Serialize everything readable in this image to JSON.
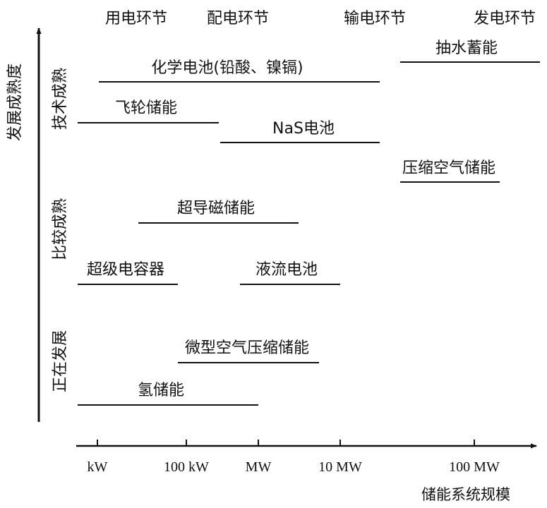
{
  "chart_data": {
    "type": "diagram",
    "x_axis": {
      "label": "储能系统规模",
      "ticks": [
        "kW",
        "100 kW",
        "MW",
        "10 MW",
        "100 MW"
      ]
    },
    "y_axis": {
      "label": "发展成熟度",
      "levels": [
        "技术成熟",
        "比较成熟",
        "正在发展"
      ]
    },
    "segments": [
      "用电环节",
      "配电环节",
      "输电环节",
      "发电环节"
    ],
    "technologies": [
      {
        "name": "抽水蓄能"
      },
      {
        "name": "化学电池(铅酸、镍镉)"
      },
      {
        "name": "飞轮储能"
      },
      {
        "name": "NaS电池"
      },
      {
        "name": "压缩空气储能"
      },
      {
        "name": "超导磁储能"
      },
      {
        "name": "超级电容器"
      },
      {
        "name": "液流电池"
      },
      {
        "name": "微型空气压缩储能"
      },
      {
        "name": "氢储能"
      }
    ]
  }
}
